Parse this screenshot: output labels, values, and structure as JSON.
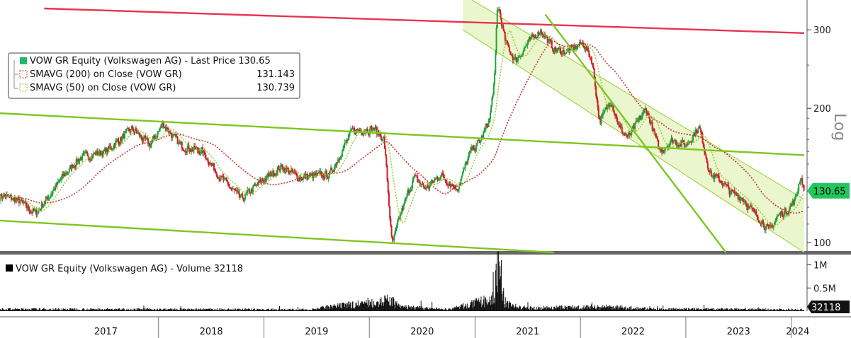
{
  "chart_data": [
    {
      "type": "line",
      "legend": {
        "entries": [
          {
            "label": "VOW GR Equity (Volkswagen AG) - Last Price",
            "value": "130.65",
            "color": "#22b573",
            "style": "solid-square"
          },
          {
            "label": "SMAVG (200)  on Close (VOW GR)",
            "value": "131.143",
            "color": "#c0392b",
            "style": "dotted-square"
          },
          {
            "label": "SMAVG (50)  on Close (VOW GR)",
            "value": "130.739",
            "color": "#9acd32",
            "style": "dotted-square"
          }
        ],
        "placement": "top-left"
      },
      "y_axis": {
        "scale": "log",
        "ticks": [
          100,
          200,
          300
        ],
        "tick_labels": [
          "100",
          "200",
          "300"
        ],
        "label": "Log",
        "range": [
          95,
          350
        ],
        "side": "right"
      },
      "x_axis": {
        "type": "date",
        "range": [
          "2016-07-01",
          "2024-02-15"
        ],
        "year_labels": [
          "2017",
          "2018",
          "2019",
          "2020",
          "2021",
          "2022",
          "2023",
          "2024"
        ]
      },
      "last_price": {
        "value": 130.65,
        "label": "130.65",
        "color": "#22c55e"
      },
      "price_anchors": [
        {
          "date": "2016-07-01",
          "value": 128
        },
        {
          "date": "2016-09-01",
          "value": 124
        },
        {
          "date": "2016-11-01",
          "value": 116
        },
        {
          "date": "2017-02-01",
          "value": 140
        },
        {
          "date": "2017-04-01",
          "value": 155
        },
        {
          "date": "2017-07-01",
          "value": 160
        },
        {
          "date": "2017-10-01",
          "value": 180
        },
        {
          "date": "2017-12-01",
          "value": 165
        },
        {
          "date": "2018-01-15",
          "value": 185
        },
        {
          "date": "2018-03-15",
          "value": 165
        },
        {
          "date": "2018-06-01",
          "value": 160
        },
        {
          "date": "2018-08-01",
          "value": 140
        },
        {
          "date": "2018-10-15",
          "value": 125
        },
        {
          "date": "2018-12-15",
          "value": 136
        },
        {
          "date": "2019-03-01",
          "value": 148
        },
        {
          "date": "2019-05-01",
          "value": 140
        },
        {
          "date": "2019-08-15",
          "value": 142
        },
        {
          "date": "2019-11-01",
          "value": 178
        },
        {
          "date": "2020-01-15",
          "value": 180
        },
        {
          "date": "2020-02-20",
          "value": 170
        },
        {
          "date": "2020-03-18",
          "value": 98
        },
        {
          "date": "2020-04-15",
          "value": 115
        },
        {
          "date": "2020-06-01",
          "value": 140
        },
        {
          "date": "2020-07-15",
          "value": 132
        },
        {
          "date": "2020-09-01",
          "value": 142
        },
        {
          "date": "2020-10-30",
          "value": 132
        },
        {
          "date": "2020-12-15",
          "value": 160
        },
        {
          "date": "2021-01-20",
          "value": 170
        },
        {
          "date": "2021-02-20",
          "value": 190
        },
        {
          "date": "2021-03-10",
          "value": 240
        },
        {
          "date": "2021-03-18",
          "value": 350
        },
        {
          "date": "2021-04-15",
          "value": 280
        },
        {
          "date": "2021-05-20",
          "value": 255
        },
        {
          "date": "2021-07-01",
          "value": 280
        },
        {
          "date": "2021-08-15",
          "value": 300
        },
        {
          "date": "2021-10-01",
          "value": 270
        },
        {
          "date": "2021-11-15",
          "value": 268
        },
        {
          "date": "2022-01-10",
          "value": 280
        },
        {
          "date": "2022-02-10",
          "value": 255
        },
        {
          "date": "2022-03-07",
          "value": 185
        },
        {
          "date": "2022-04-15",
          "value": 210
        },
        {
          "date": "2022-05-15",
          "value": 180
        },
        {
          "date": "2022-06-15",
          "value": 172
        },
        {
          "date": "2022-08-15",
          "value": 200
        },
        {
          "date": "2022-10-01",
          "value": 160
        },
        {
          "date": "2022-11-15",
          "value": 170
        },
        {
          "date": "2022-12-30",
          "value": 165
        },
        {
          "date": "2023-02-15",
          "value": 182
        },
        {
          "date": "2023-03-25",
          "value": 142
        },
        {
          "date": "2023-05-01",
          "value": 138
        },
        {
          "date": "2023-06-01",
          "value": 130
        },
        {
          "date": "2023-07-15",
          "value": 126
        },
        {
          "date": "2023-08-15",
          "value": 118
        },
        {
          "date": "2023-09-20",
          "value": 112
        },
        {
          "date": "2023-10-15",
          "value": 106
        },
        {
          "date": "2023-11-15",
          "value": 115
        },
        {
          "date": "2023-12-15",
          "value": 118
        },
        {
          "date": "2024-01-15",
          "value": 125
        },
        {
          "date": "2024-02-01",
          "value": 142
        },
        {
          "date": "2024-02-15",
          "value": 130.65
        }
      ],
      "trend_lines": [
        {
          "name": "upper-red",
          "color": "#e8344e",
          "points": [
            {
              "date": "2016-12-01",
              "value": 335
            },
            {
              "date": "2024-02-15",
              "value": 295
            }
          ]
        },
        {
          "name": "mid-green",
          "color": "#7ec621",
          "points": [
            {
              "date": "2016-07-01",
              "value": 195
            },
            {
              "date": "2024-02-15",
              "value": 157
            }
          ]
        },
        {
          "name": "low-green",
          "color": "#7ec621",
          "points": [
            {
              "date": "2016-07-01",
              "value": 112
            },
            {
              "date": "2021-10-01",
              "value": 95
            }
          ]
        },
        {
          "name": "steep-green",
          "color": "#7ec621",
          "points": [
            {
              "date": "2021-09-01",
              "value": 325
            },
            {
              "date": "2023-05-20",
              "value": 95
            }
          ]
        }
      ],
      "channel": {
        "color": "#e8f5c8",
        "edge_color": "#9acd32",
        "upper": [
          {
            "date": "2020-11-20",
            "value": 360
          },
          {
            "date": "2024-02-15",
            "value": 125
          }
        ],
        "lower": [
          {
            "date": "2020-11-20",
            "value": 300
          },
          {
            "date": "2024-02-15",
            "value": 95
          }
        ]
      }
    },
    {
      "type": "bar",
      "legend": {
        "entries": [
          {
            "label": "VOW GR Equity (Volkswagen AG) - Volume",
            "value": "32118",
            "color": "#000000"
          }
        ],
        "placement": "top-left"
      },
      "y_axis": {
        "ticks": [
          500000,
          1000000
        ],
        "tick_labels": [
          "0.5M",
          "1M"
        ],
        "range": [
          0,
          1100000
        ],
        "side": "right"
      },
      "last_volume": {
        "value": 32118,
        "label": "32118"
      },
      "volume_anchors": [
        {
          "date": "2016-07-01",
          "value": 40000
        },
        {
          "date": "2017-06-01",
          "value": 38000
        },
        {
          "date": "2018-04-01",
          "value": 36000
        },
        {
          "date": "2019-06-01",
          "value": 32000
        },
        {
          "date": "2020-03-15",
          "value": 220000
        },
        {
          "date": "2020-04-15",
          "value": 90000
        },
        {
          "date": "2020-10-01",
          "value": 35000
        },
        {
          "date": "2021-03-10",
          "value": 250000
        },
        {
          "date": "2021-03-18",
          "value": 1050000
        },
        {
          "date": "2021-04-15",
          "value": 150000
        },
        {
          "date": "2021-06-15",
          "value": 60000
        },
        {
          "date": "2022-03-07",
          "value": 90000
        },
        {
          "date": "2022-09-15",
          "value": 45000
        },
        {
          "date": "2023-06-15",
          "value": 38000
        },
        {
          "date": "2024-02-15",
          "value": 32118
        }
      ]
    }
  ]
}
